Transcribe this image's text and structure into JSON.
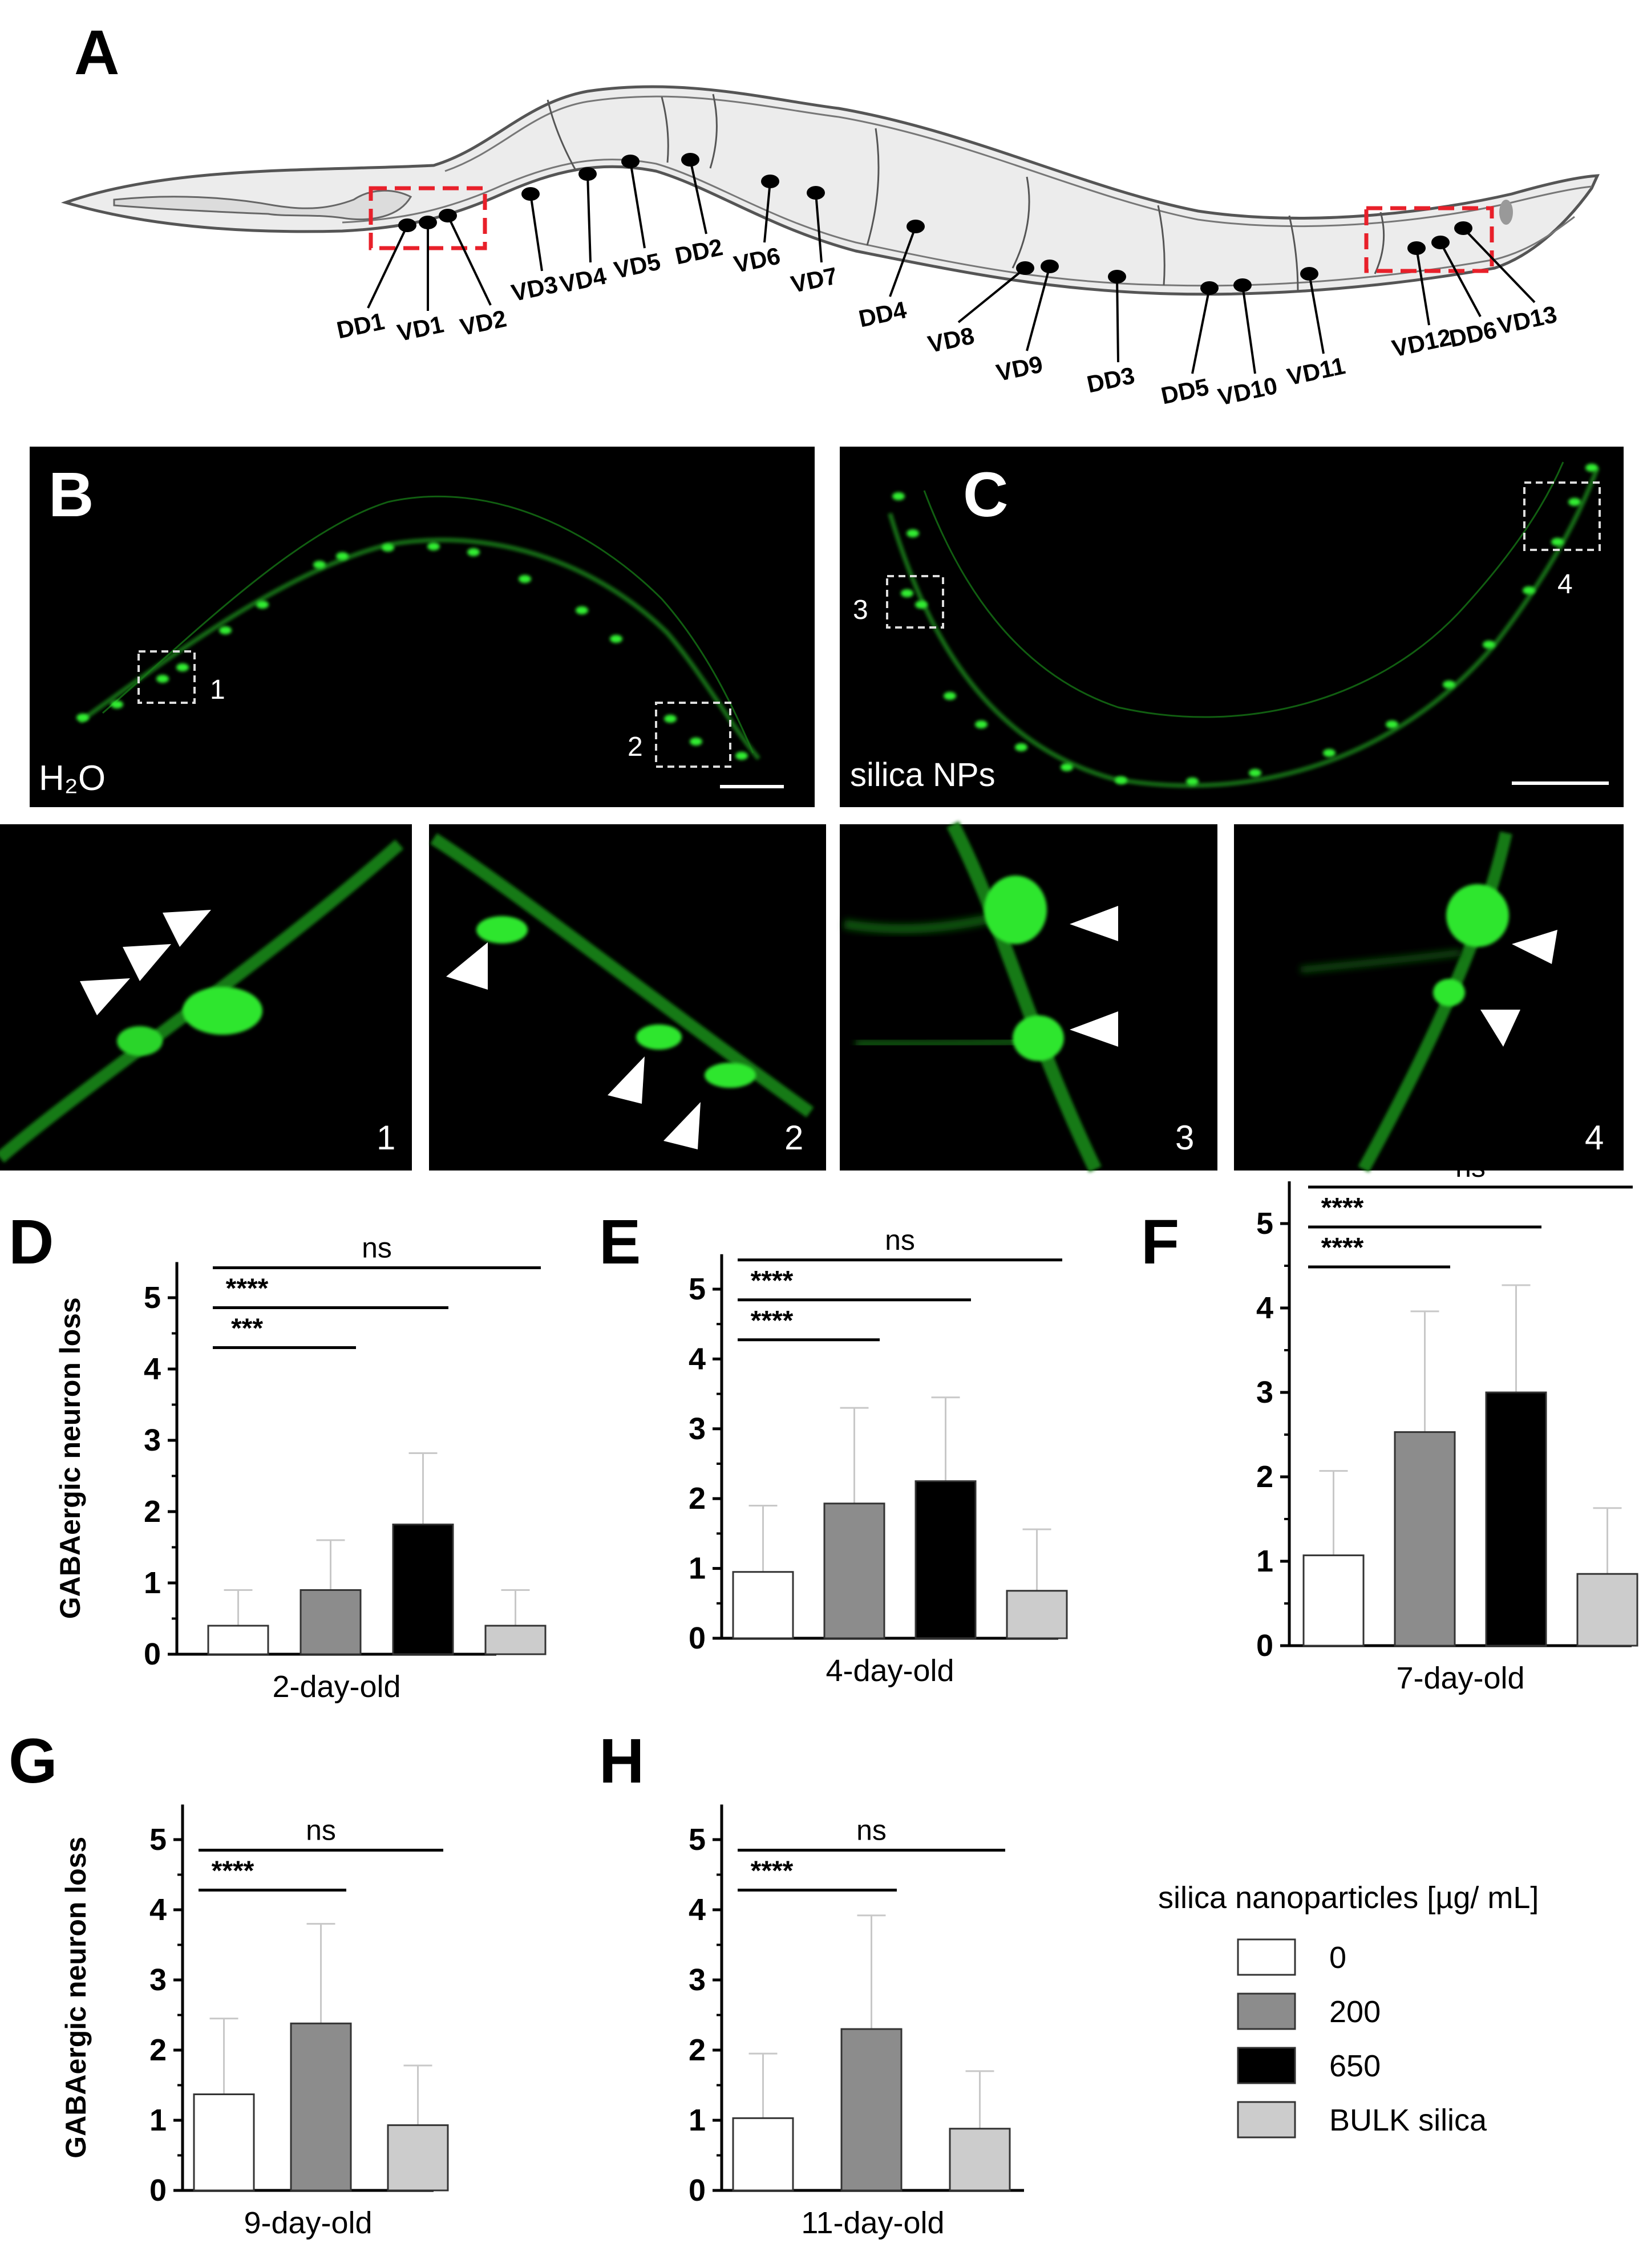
{
  "panel_labels": {
    "A": "A",
    "B": "B",
    "C": "C",
    "D": "D",
    "E": "E",
    "F": "F",
    "G": "G",
    "H": "H"
  },
  "worm_diagram": {
    "neurons": [
      {
        "label": "DD1"
      },
      {
        "label": "VD1"
      },
      {
        "label": "VD2"
      },
      {
        "label": "VD3"
      },
      {
        "label": "VD4"
      },
      {
        "label": "VD5"
      },
      {
        "label": "DD2"
      },
      {
        "label": "VD6"
      },
      {
        "label": "VD7"
      },
      {
        "label": "DD4"
      },
      {
        "label": "VD8"
      },
      {
        "label": "VD9"
      },
      {
        "label": "DD3"
      },
      {
        "label": "DD5"
      },
      {
        "label": "VD10"
      },
      {
        "label": "VD11"
      },
      {
        "label": "VD12"
      },
      {
        "label": "DD6"
      },
      {
        "label": "VD13"
      }
    ],
    "colors": {
      "body": "#e9e9e9",
      "outline": "#555555",
      "neuron": "#000000",
      "highlight_box": "#e8202a"
    }
  },
  "micrographs": {
    "panel_B_label": "H₂O",
    "panel_C_label": "silica NPs",
    "inset_numbers": [
      "1",
      "2",
      "3",
      "4"
    ],
    "insets": [
      {
        "number": "1"
      },
      {
        "number": "2"
      },
      {
        "number": "3"
      },
      {
        "number": "4"
      }
    ],
    "colors": {
      "background": "#000000",
      "fluorescence": "#22e022",
      "scale_bar": "#ffffff"
    }
  },
  "legend": {
    "title": "silica nanoparticles [µg/ mL]",
    "items": [
      {
        "label": "0",
        "color": "#ffffff"
      },
      {
        "label": "200",
        "color": "#8c8c8c"
      },
      {
        "label": "650",
        "color": "#000000"
      },
      {
        "label": "BULK silica",
        "color": "#cccccc"
      }
    ]
  },
  "chart_data": [
    {
      "panel": "D",
      "type": "bar",
      "ylabel": "GABAergic neuron loss",
      "xlabel": "2-day-old",
      "ylim": [
        0,
        5.5
      ],
      "yticks": [
        "0",
        "1",
        "2",
        "3",
        "4",
        "5"
      ],
      "categories": [
        "0",
        "200",
        "650",
        "BULK silica"
      ],
      "values": [
        0.4,
        0.9,
        1.82,
        0.4
      ],
      "errors": [
        0.5,
        0.7,
        1.0,
        0.5
      ],
      "significance": [
        {
          "label": "***",
          "from": "0",
          "to": "200"
        },
        {
          "label": "****",
          "from": "0",
          "to": "650"
        },
        {
          "label": "ns",
          "from": "0",
          "to": "BULK silica"
        }
      ]
    },
    {
      "panel": "E",
      "type": "bar",
      "ylabel": "",
      "xlabel": "4-day-old",
      "ylim": [
        0,
        5.5
      ],
      "yticks": [
        "0",
        "1",
        "2",
        "3",
        "4",
        "5"
      ],
      "categories": [
        "0",
        "200",
        "650",
        "BULK silica"
      ],
      "values": [
        0.95,
        1.93,
        2.25,
        0.68
      ],
      "errors": [
        0.95,
        1.37,
        1.2,
        0.88
      ],
      "significance": [
        {
          "label": "****",
          "from": "0",
          "to": "200"
        },
        {
          "label": "****",
          "from": "0",
          "to": "650"
        },
        {
          "label": "ns",
          "from": "0",
          "to": "BULK silica"
        }
      ]
    },
    {
      "panel": "F",
      "type": "bar",
      "ylabel": "",
      "xlabel": "7-day-old",
      "ylim": [
        0,
        5.5
      ],
      "yticks": [
        "0",
        "1",
        "2",
        "3",
        "4",
        "5"
      ],
      "categories": [
        "0",
        "200",
        "650",
        "BULK silica"
      ],
      "values": [
        1.07,
        2.53,
        3.0,
        0.85
      ],
      "errors": [
        1.0,
        1.43,
        1.27,
        0.78
      ],
      "significance": [
        {
          "label": "****",
          "from": "0",
          "to": "200"
        },
        {
          "label": "****",
          "from": "0",
          "to": "650"
        },
        {
          "label": "ns",
          "from": "0",
          "to": "BULK silica"
        }
      ]
    },
    {
      "panel": "G",
      "type": "bar",
      "ylabel": "GABAergic neuron loss",
      "xlabel": "9-day-old",
      "ylim": [
        0,
        5.5
      ],
      "yticks": [
        "0",
        "1",
        "2",
        "3",
        "4",
        "5"
      ],
      "categories": [
        "0",
        "200",
        "BULK silica"
      ],
      "values": [
        1.37,
        2.38,
        0.93
      ],
      "errors": [
        1.08,
        1.42,
        0.85
      ],
      "significance": [
        {
          "label": "****",
          "from": "0",
          "to": "200"
        },
        {
          "label": "ns",
          "from": "0",
          "to": "BULK silica"
        }
      ]
    },
    {
      "panel": "H",
      "type": "bar",
      "ylabel": "",
      "xlabel": "11-day-old",
      "ylim": [
        0,
        5.5
      ],
      "yticks": [
        "0",
        "1",
        "2",
        "3",
        "4",
        "5"
      ],
      "categories": [
        "0",
        "200",
        "BULK silica"
      ],
      "values": [
        1.03,
        2.3,
        0.88
      ],
      "errors": [
        0.92,
        1.62,
        0.82
      ],
      "significance": [
        {
          "label": "****",
          "from": "0",
          "to": "200"
        },
        {
          "label": "ns",
          "from": "0",
          "to": "BULK silica"
        }
      ]
    }
  ]
}
